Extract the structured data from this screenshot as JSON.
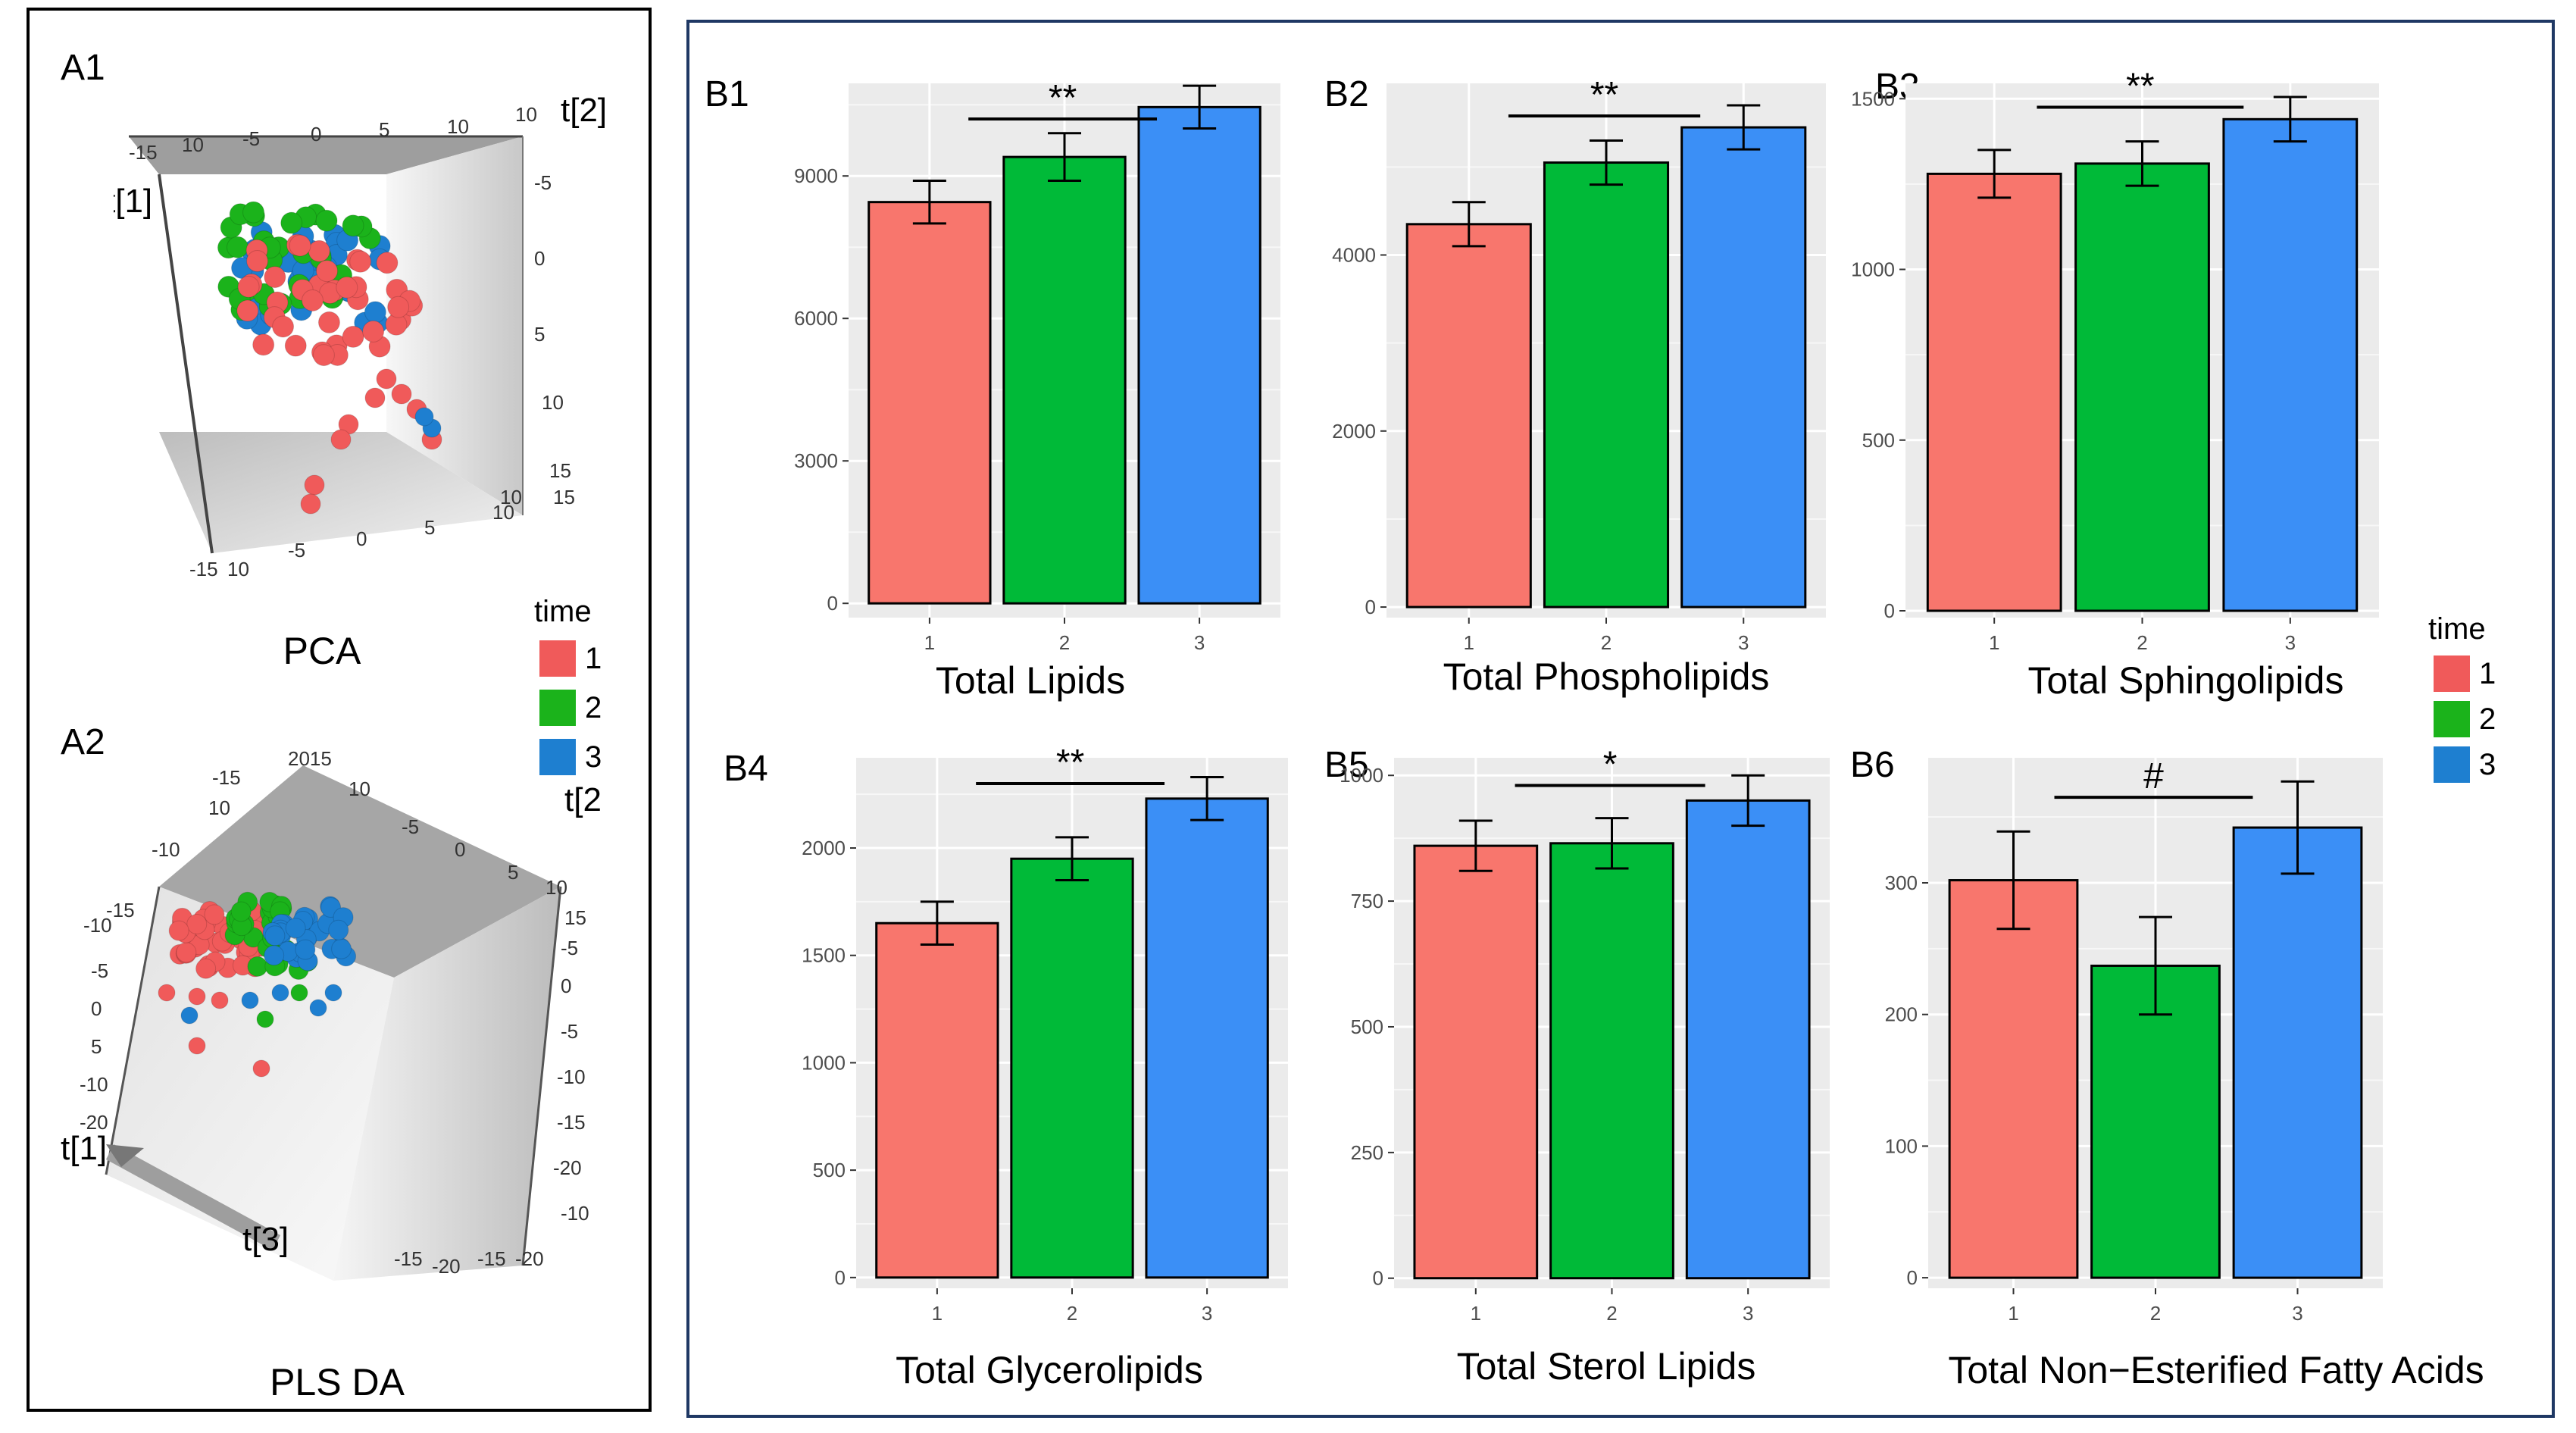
{
  "panel_a": {
    "a1_label": "A1",
    "a2_label": "A2",
    "pca_caption": "PCA",
    "plsda_caption": "PLS DA",
    "pca_axes": {
      "t1": "t[1]",
      "t2": "t[2]"
    },
    "plsda_axes": {
      "t1": "t[1]",
      "t2": "t[2",
      "t3": "t[3]"
    },
    "pca_ticks": [
      "-15",
      "10",
      "-5",
      "0",
      "5",
      "10",
      "10",
      "-5",
      "0",
      "5",
      "10",
      "15",
      "10",
      "15",
      "-5",
      "0",
      "5",
      "10",
      "-15",
      "10"
    ],
    "plsda_ticks": [
      "2015",
      "10",
      "-15",
      "10",
      "-10",
      "-5",
      "0",
      "5",
      "10",
      "15",
      "-10",
      "-15",
      "-5",
      "0",
      "5",
      "-10",
      "-5",
      "0",
      "-5",
      "-10",
      "-15",
      "-20",
      "-20",
      "-15",
      "-20",
      "-10",
      "-15",
      "-20"
    ],
    "legend": {
      "title": "time",
      "items": [
        {
          "label": "1",
          "color": "#f05a5a"
        },
        {
          "label": "2",
          "color": "#1bb31b"
        },
        {
          "label": "3",
          "color": "#1e7fd0"
        }
      ]
    }
  },
  "panel_b": {
    "legend": {
      "title": "time",
      "items": [
        {
          "label": "1",
          "color": "#f8766d"
        },
        {
          "label": "2",
          "color": "#00ba38"
        },
        {
          "label": "3",
          "color": "#1e7fd0"
        }
      ]
    }
  },
  "chart_data": [
    {
      "id": "B1",
      "type": "bar",
      "title": "Total Lipids",
      "categories": [
        "1",
        "2",
        "3"
      ],
      "values": [
        8450,
        9400,
        10450
      ],
      "error": [
        450,
        500,
        450
      ],
      "ylim": [
        -300,
        10950
      ],
      "yticks": [
        0,
        3000,
        6000,
        9000
      ],
      "yticklabels": [
        "0",
        "3000",
        "6000",
        "9000"
      ],
      "significance": {
        "label": "**",
        "from": "1",
        "to": "3",
        "y": 10200
      },
      "colors": [
        "#f8766d",
        "#00ba38",
        "#3b8ff6"
      ]
    },
    {
      "id": "B2",
      "type": "bar",
      "title": "Total Phospholipids",
      "categories": [
        "1",
        "2",
        "3"
      ],
      "values": [
        4350,
        5050,
        5450
      ],
      "error": [
        250,
        250,
        250
      ],
      "ylim": [
        -120,
        5950
      ],
      "yticks": [
        0,
        2000,
        4000
      ],
      "yticklabels": [
        "0",
        "2000",
        "4000"
      ],
      "significance": {
        "label": "**",
        "from": "1",
        "to": "3",
        "y": 5580
      },
      "colors": [
        "#f8766d",
        "#00ba38",
        "#3b8ff6"
      ]
    },
    {
      "id": "B3",
      "type": "bar",
      "title": "Total Sphingolipids",
      "categories": [
        "1",
        "2",
        "3"
      ],
      "values": [
        1280,
        1310,
        1440
      ],
      "error": [
        70,
        65,
        65
      ],
      "ylim": [
        -20,
        1545
      ],
      "yticks": [
        0,
        500,
        1000,
        1500
      ],
      "yticklabels": [
        "0",
        "500",
        "1000",
        "1500"
      ],
      "significance": {
        "label": "**",
        "from": "1",
        "to": "3",
        "y": 1475
      },
      "colors": [
        "#f8766d",
        "#00ba38",
        "#3b8ff6"
      ]
    },
    {
      "id": "B4",
      "type": "bar",
      "title": "Total Glycerolipids",
      "categories": [
        "1",
        "2",
        "3"
      ],
      "values": [
        1650,
        1950,
        2230
      ],
      "error": [
        100,
        100,
        100
      ],
      "ylim": [
        -50,
        2420
      ],
      "yticks": [
        0,
        500,
        1000,
        1500,
        2000
      ],
      "yticklabels": [
        "0",
        "500",
        "1000",
        "1500",
        "2000"
      ],
      "significance": {
        "label": "**",
        "from": "1",
        "to": "3",
        "y": 2300
      },
      "colors": [
        "#f8766d",
        "#00ba38",
        "#3b8ff6"
      ]
    },
    {
      "id": "B5",
      "type": "bar",
      "title": "Total Sterol Lipids",
      "categories": [
        "1",
        "2",
        "3"
      ],
      "values": [
        860,
        865,
        950
      ],
      "error": [
        50,
        50,
        50
      ],
      "ylim": [
        -20,
        1035
      ],
      "yticks": [
        0,
        250,
        500,
        750,
        1000
      ],
      "yticklabels": [
        "0",
        "250",
        "500",
        "750",
        "1000"
      ],
      "significance": {
        "label": "*",
        "from": "1",
        "to": "3",
        "y": 980
      },
      "colors": [
        "#f8766d",
        "#00ba38",
        "#3b8ff6"
      ]
    },
    {
      "id": "B6",
      "type": "bar",
      "title": "Total Non−Esterified Fatty Acids",
      "categories": [
        "1",
        "2",
        "3"
      ],
      "values": [
        302,
        237,
        342
      ],
      "error": [
        37,
        37,
        35
      ],
      "ylim": [
        -8,
        395
      ],
      "yticks": [
        0,
        100,
        200,
        300
      ],
      "yticklabels": [
        "0",
        "100",
        "200",
        "300"
      ],
      "significance": {
        "label": "#",
        "from": "1",
        "to": "3",
        "y": 365
      },
      "colors": [
        "#f8766d",
        "#00ba38",
        "#3b8ff6"
      ]
    }
  ]
}
